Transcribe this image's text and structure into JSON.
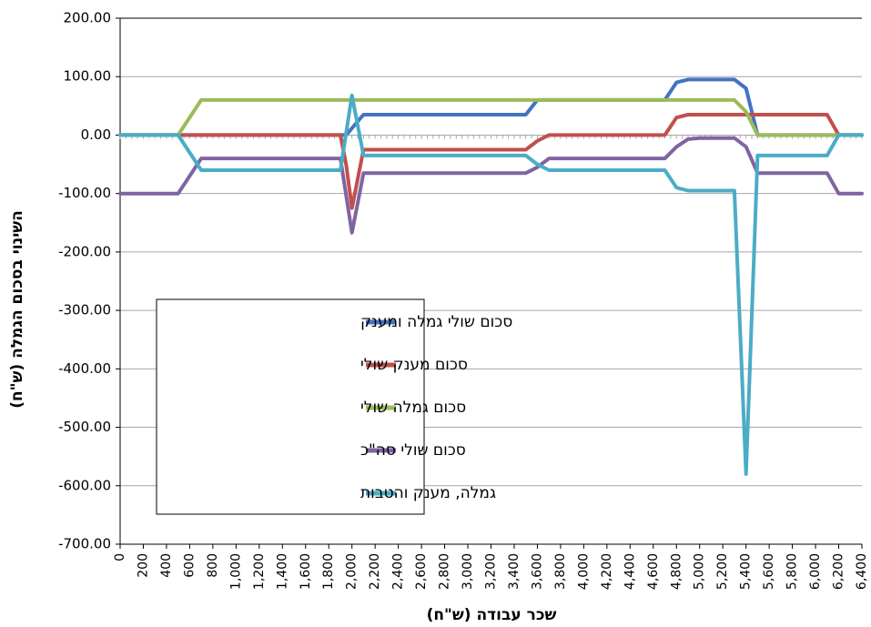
{
  "chart_data": {
    "type": "line",
    "xlabel": "שכר עבודה (ש\"ח)",
    "ylabel": "השינוי בסכום הגמלה (ש\"ח)",
    "xlim": [
      0,
      6400
    ],
    "ylim": [
      -700,
      200
    ],
    "y_ticks": [
      "200.00",
      "100.00",
      "0.00",
      "-100.00",
      "-200.00",
      "-300.00",
      "-400.00",
      "-500.00",
      "-600.00",
      "-700.00"
    ],
    "x_ticks": [
      "0",
      "200",
      "400",
      "600",
      "800",
      "1,000",
      "1,200",
      "1,400",
      "1,600",
      "1,800",
      "2,000",
      "2,200",
      "2,400",
      "2,600",
      "2,800",
      "3,000",
      "3,200",
      "3,400",
      "3,600",
      "3,800",
      "4,000",
      "4,200",
      "4,400",
      "4,600",
      "4,800",
      "5,000",
      "5,200",
      "5,400",
      "5,600",
      "5,800",
      "6,000",
      "6,200",
      "6,400"
    ],
    "grid": "horizontal",
    "legend_position": "bottom-left",
    "series": [
      {
        "name": "סכום שולי גמלה ומענק",
        "color": "#4472C4",
        "x": [
          0,
          500,
          1000,
          1500,
          1950,
          2100,
          2500,
          3000,
          3500,
          3600,
          4000,
          4500,
          4700,
          4800,
          4900,
          5000,
          5300,
          5400,
          5500,
          6000,
          6200,
          6400
        ],
        "y": [
          0,
          0,
          0,
          0,
          0,
          35,
          35,
          35,
          35,
          60,
          60,
          60,
          60,
          90,
          95,
          95,
          95,
          80,
          0,
          0,
          0,
          0
        ]
      },
      {
        "name": "סכום מענק שולי",
        "color": "#C0504D",
        "x": [
          0,
          500,
          1000,
          1500,
          1900,
          1950,
          2000,
          2100,
          2500,
          3000,
          3500,
          3600,
          3700,
          4000,
          4500,
          4700,
          4800,
          4900,
          5000,
          5500,
          6000,
          6100,
          6200,
          6400
        ],
        "y": [
          0,
          0,
          0,
          0,
          0,
          -50,
          -125,
          -25,
          -25,
          -25,
          -25,
          -10,
          0,
          0,
          0,
          0,
          30,
          35,
          35,
          35,
          35,
          35,
          0,
          0
        ]
      },
      {
        "name": "סכום גמלה שולי",
        "color": "#9BBB59",
        "x": [
          0,
          500,
          700,
          1000,
          1500,
          2000,
          2500,
          3000,
          3500,
          4000,
          4500,
          5000,
          5300,
          5400,
          5500,
          6000,
          6400
        ],
        "y": [
          0,
          0,
          60,
          60,
          60,
          60,
          60,
          60,
          60,
          60,
          60,
          60,
          60,
          40,
          0,
          0,
          0
        ]
      },
      {
        "name": "סכום שולי סה\"כ",
        "color": "#8064A2",
        "x": [
          0,
          500,
          700,
          1000,
          1500,
          1900,
          2000,
          2100,
          2500,
          3000,
          3500,
          3600,
          3700,
          4000,
          4500,
          4700,
          4800,
          4900,
          5000,
          5300,
          5400,
          5500,
          6000,
          6100,
          6200,
          6400
        ],
        "y": [
          -100,
          -100,
          -40,
          -40,
          -40,
          -40,
          -167,
          -65,
          -65,
          -65,
          -65,
          -55,
          -40,
          -40,
          -40,
          -40,
          -20,
          -7,
          -5,
          -5,
          -20,
          -65,
          -65,
          -65,
          -100,
          -100
        ]
      },
      {
        "name": "גמלה, מענק והטבות",
        "color": "#4BACC6",
        "x": [
          0,
          500,
          700,
          1000,
          1500,
          1900,
          2000,
          2100,
          2500,
          3000,
          3500,
          3600,
          3700,
          4000,
          4500,
          4700,
          4800,
          4900,
          5000,
          5300,
          5400,
          5500,
          6000,
          6100,
          6200,
          6400
        ],
        "y": [
          0,
          0,
          -60,
          -60,
          -60,
          -60,
          68,
          -35,
          -35,
          -35,
          -35,
          -50,
          -60,
          -60,
          -60,
          -60,
          -90,
          -95,
          -95,
          -95,
          -580,
          -35,
          -35,
          -35,
          0,
          0
        ]
      }
    ]
  }
}
